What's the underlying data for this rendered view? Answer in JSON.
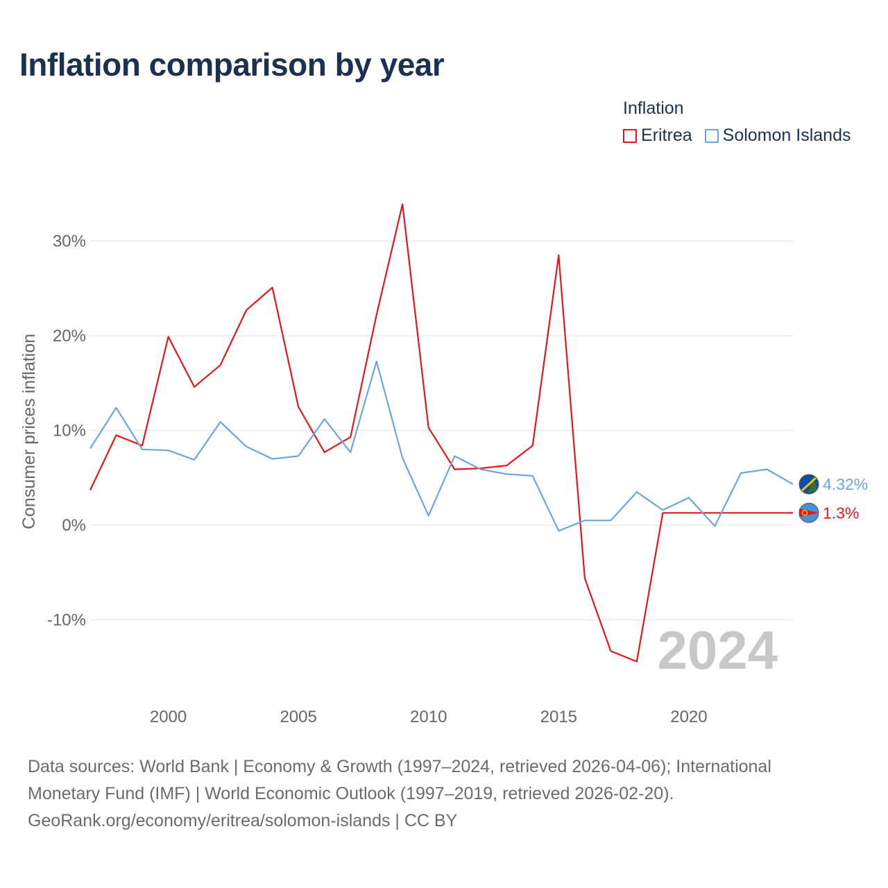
{
  "title": "Inflation comparison by year",
  "legend": {
    "title": "Inflation",
    "items": [
      {
        "name": "Eritrea",
        "color": "#e8141b"
      },
      {
        "name": "Solomon Islands",
        "color": "#6aa6e0"
      }
    ]
  },
  "chart_data": {
    "type": "line",
    "title": "Inflation comparison by year",
    "xlabel": "",
    "ylabel": "Consumer prices inflation",
    "xlim": [
      1997,
      2024
    ],
    "ylim": [
      -18,
      35
    ],
    "x_ticks": [
      2000,
      2005,
      2010,
      2015,
      2020
    ],
    "y_ticks": [
      30,
      20,
      10,
      0,
      -10
    ],
    "y_tick_labels": [
      "30%",
      "20%",
      "10%",
      "0%",
      "-10%"
    ],
    "x_tick_labels": [
      "2000",
      "2005",
      "2010",
      "2015",
      "2020"
    ],
    "year_label": "2024",
    "series": [
      {
        "name": "Eritrea",
        "color": "#e8141b",
        "x": [
          1997,
          1998,
          1999,
          2000,
          2001,
          2002,
          2003,
          2004,
          2005,
          2006,
          2007,
          2008,
          2009,
          2010,
          2011,
          2012,
          2013,
          2014,
          2015,
          2016,
          2017,
          2018,
          2019,
          2020,
          2021,
          2022,
          2023,
          2024
        ],
        "values": [
          3.7,
          9.5,
          8.4,
          19.9,
          14.6,
          16.9,
          22.7,
          25.1,
          12.5,
          7.7,
          9.3,
          22.2,
          33.9,
          10.3,
          5.9,
          6.0,
          6.3,
          8.4,
          28.5,
          -5.6,
          -13.3,
          -14.4,
          1.3,
          1.3,
          1.3,
          1.3,
          1.3,
          1.3
        ],
        "end_label": "1.3%"
      },
      {
        "name": "Solomon Islands",
        "color": "#6aa6e0",
        "x": [
          1997,
          1998,
          1999,
          2000,
          2001,
          2002,
          2003,
          2004,
          2005,
          2006,
          2007,
          2008,
          2009,
          2010,
          2011,
          2012,
          2013,
          2014,
          2015,
          2016,
          2017,
          2018,
          2019,
          2020,
          2021,
          2022,
          2023,
          2024
        ],
        "values": [
          8.1,
          12.4,
          8.0,
          7.9,
          6.9,
          10.9,
          8.3,
          7.0,
          7.3,
          11.2,
          7.7,
          17.3,
          7.1,
          1.0,
          7.3,
          5.9,
          5.4,
          5.2,
          -0.6,
          0.5,
          0.5,
          3.5,
          1.6,
          2.9,
          -0.1,
          5.5,
          5.9,
          4.32
        ],
        "end_label": "4.32%"
      }
    ]
  },
  "footer": {
    "line1": "Data sources: World Bank | Economy & Growth (1997–2024, retrieved 2026-04-06); International",
    "line2": "Monetary Fund (IMF) | World Economic Outlook (1997–2019, retrieved 2026-02-20).",
    "line3": "GeoRank.org/economy/eritrea/solomon-islands | CC BY"
  }
}
